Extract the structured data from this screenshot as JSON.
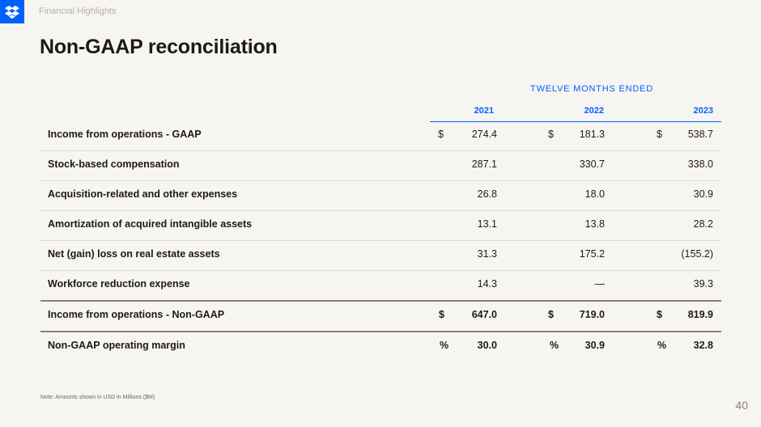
{
  "header": {
    "section": "Financial Highlights",
    "title": "Non-GAAP reconciliation",
    "brand_color": "#0061fe"
  },
  "table": {
    "period_header": "TWELVE MONTHS ENDED",
    "years": [
      "2021",
      "2022",
      "2023"
    ],
    "rows": [
      {
        "label": "Income from operations - GAAP",
        "cur": [
          "$",
          "$",
          "$"
        ],
        "values": [
          "274.4",
          "181.3",
          "538.7"
        ]
      },
      {
        "label": "Stock-based compensation",
        "cur": [
          "",
          "",
          ""
        ],
        "values": [
          "287.1",
          "330.7",
          "338.0"
        ]
      },
      {
        "label": "Acquisition-related and other expenses",
        "cur": [
          "",
          "",
          ""
        ],
        "values": [
          "26.8",
          "18.0",
          "30.9"
        ]
      },
      {
        "label": "Amortization of acquired intangible assets",
        "cur": [
          "",
          "",
          ""
        ],
        "values": [
          "13.1",
          "13.8",
          "28.2"
        ]
      },
      {
        "label": "Net (gain) loss on real estate assets",
        "cur": [
          "",
          "",
          ""
        ],
        "values": [
          "31.3",
          "175.2",
          "(155.2)"
        ]
      },
      {
        "label": "Workforce reduction expense",
        "cur": [
          "",
          "",
          ""
        ],
        "values": [
          "14.3",
          "—",
          "39.3"
        ]
      },
      {
        "label": "Income from operations - Non-GAAP",
        "cur": [
          "$",
          "$",
          "$"
        ],
        "values": [
          "647.0",
          "719.0",
          "819.9"
        ]
      },
      {
        "label": "Non-GAAP operating margin",
        "cur": [
          "%",
          "%",
          "%"
        ],
        "values": [
          "30.0",
          "30.9",
          "32.8"
        ]
      }
    ]
  },
  "footer": {
    "note": "Note: Amounts shown in USD in Millions ($M)",
    "page_number": "40"
  }
}
